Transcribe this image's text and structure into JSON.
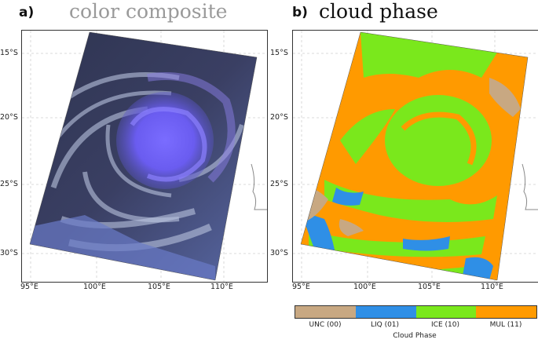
{
  "panel_a": {
    "letter": "a)",
    "title": "color composite",
    "title_color": "#9a9a9a",
    "lat_labels": [
      "15°S",
      "20°S",
      "25°S",
      "30°S"
    ],
    "lon_labels": [
      "95°E",
      "100°E",
      "105°E",
      "110°E"
    ]
  },
  "panel_b": {
    "letter": "b)",
    "title": "cloud phase",
    "title_color": "#111111",
    "lat_labels": [
      "15°S",
      "20°S",
      "25°S",
      "30°S"
    ],
    "lon_labels": [
      "95°E",
      "100°E",
      "105°E",
      "110°E"
    ]
  },
  "colorbar": {
    "title": "Cloud Phase",
    "classes": [
      {
        "label": "UNC (00)",
        "color": "#c8a882"
      },
      {
        "label": "LIQ (01)",
        "color": "#2f8fe6"
      },
      {
        "label": "ICE (10)",
        "color": "#7ae81c"
      },
      {
        "label": "MUL (11)",
        "color": "#ff9a00"
      }
    ]
  }
}
